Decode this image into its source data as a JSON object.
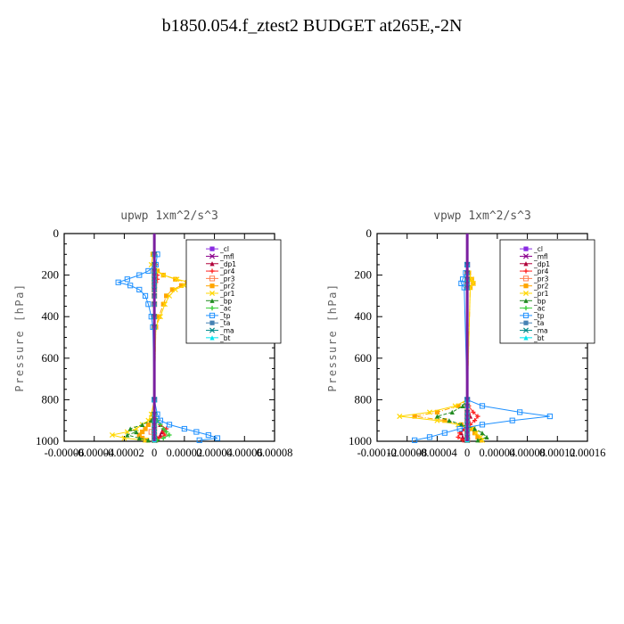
{
  "title": "b1850.054.f_ztest2  BUDGET at265E,-2N",
  "chart_data": [
    {
      "type": "line",
      "panel_title": "upwp   1xm^2/s^3",
      "ylabel": "Pressure [hPa]",
      "ylim": [
        1000,
        0
      ],
      "yticks": [
        "0",
        "200",
        "400",
        "600",
        "800",
        "1000"
      ],
      "xlim": [
        -6e-05,
        8e-05
      ],
      "xtick_labels": [
        "-0.00006",
        "-0.00004",
        "-0.00002",
        "0",
        "0.00002",
        "0.00004",
        "0.00006",
        "0.00008"
      ],
      "grid": false,
      "legend_position": "top-right",
      "pressure_levels": [
        100,
        150,
        180,
        200,
        220,
        235,
        250,
        270,
        300,
        340,
        400,
        450,
        800,
        870,
        900,
        920,
        940,
        955,
        970,
        985,
        995
      ],
      "series": [
        {
          "name": "_cl",
          "color": "#8a2be2",
          "values": [
            0,
            0,
            0,
            0,
            0,
            0,
            0,
            0,
            0,
            0,
            0,
            0,
            0,
            0,
            0,
            0,
            0,
            0,
            0,
            0,
            0
          ]
        },
        {
          "name": "_mfl",
          "color": "#8b008b",
          "values": [
            0,
            0,
            0,
            0,
            0,
            0,
            0,
            0,
            0,
            0,
            0,
            0,
            0,
            0,
            0,
            0,
            0,
            0,
            0,
            0,
            0
          ]
        },
        {
          "name": "_dp1",
          "color": "#b0003a",
          "values": [
            0,
            0,
            0,
            1e-06,
            0,
            0,
            0,
            0,
            0,
            0,
            0,
            0,
            0,
            0,
            2e-06,
            4e-06,
            6e-06,
            5e-06,
            4e-06,
            2e-06,
            1e-06
          ]
        },
        {
          "name": "_pr4",
          "color": "#ff2020",
          "values": [
            0,
            1e-06,
            1e-06,
            2e-06,
            2e-06,
            1e-06,
            0,
            0,
            0,
            0,
            0,
            0,
            0,
            0,
            2e-06,
            4e-06,
            8e-06,
            6e-06,
            7e-06,
            3e-06,
            2e-06
          ]
        },
        {
          "name": "_pr3",
          "color": "#ff7f50",
          "values": [
            0,
            0,
            0,
            0,
            0,
            0,
            0,
            0,
            0,
            0,
            0,
            0,
            0,
            0,
            0,
            0,
            0,
            -2e-06,
            0,
            0,
            0
          ]
        },
        {
          "name": "_pr2",
          "color": "#ffa500",
          "values": [
            -1e-06,
            0,
            2e-06,
            6e-06,
            1.4e-05,
            2.2e-05,
            1.8e-05,
            1.2e-05,
            8e-06,
            6e-06,
            3e-06,
            1e-06,
            0,
            -1e-06,
            -2e-06,
            -4e-06,
            -6e-06,
            -8e-06,
            -1e-05,
            -8e-06,
            -5e-06
          ]
        },
        {
          "name": "_pr1",
          "color": "#ffd700",
          "values": [
            -1e-06,
            -2e-06,
            1e-06,
            6e-06,
            1.5e-05,
            2.4e-05,
            2e-05,
            1.4e-05,
            1e-05,
            7e-06,
            4e-06,
            1e-06,
            0,
            -2e-06,
            -4e-06,
            -8e-06,
            -1.2e-05,
            -1.8e-05,
            -2.8e-05,
            -2e-05,
            -6e-06
          ]
        },
        {
          "name": "_bp",
          "color": "#228b22",
          "values": [
            0,
            0,
            0,
            0,
            0,
            0,
            0,
            0,
            0,
            0,
            0,
            0,
            0,
            0,
            -2e-06,
            -8e-06,
            -1.6e-05,
            -1.2e-05,
            -1.8e-05,
            -1e-05,
            -4e-06
          ]
        },
        {
          "name": "_ac",
          "color": "#32cd32",
          "values": [
            0,
            0,
            0,
            0,
            0,
            0,
            0,
            0,
            0,
            0,
            0,
            0,
            0,
            0,
            2e-06,
            4e-06,
            6e-06,
            8e-06,
            1e-05,
            6e-06,
            2e-06
          ]
        },
        {
          "name": "_tp",
          "color": "#1e90ff",
          "values": [
            2e-06,
            1e-06,
            -4e-06,
            -1e-05,
            -1.8e-05,
            -2.4e-05,
            -1.6e-05,
            -1e-05,
            -6e-06,
            -4e-06,
            -2e-06,
            -1e-06,
            0,
            2e-06,
            4e-06,
            1e-05,
            2e-05,
            2.8e-05,
            3.6e-05,
            4.2e-05,
            3e-05
          ]
        },
        {
          "name": "_ta",
          "color": "#4682b4",
          "values": [
            0,
            0,
            0,
            0,
            0,
            0,
            0,
            0,
            0,
            0,
            0,
            0,
            0,
            0,
            0,
            0,
            0,
            0,
            0,
            0,
            0
          ]
        },
        {
          "name": "_ma",
          "color": "#008b8b",
          "values": [
            0,
            0,
            0,
            0,
            0,
            0,
            0,
            0,
            0,
            0,
            0,
            0,
            0,
            0,
            0,
            0,
            0,
            0,
            0,
            0,
            0
          ]
        },
        {
          "name": "_bt",
          "color": "#00e5ee",
          "values": [
            0,
            0,
            0,
            0,
            0,
            0,
            0,
            0,
            0,
            0,
            0,
            0,
            0,
            0,
            0,
            0,
            0,
            0,
            0,
            0,
            0
          ]
        }
      ]
    },
    {
      "type": "line",
      "panel_title": "vpwp   1xm^2/s^3",
      "ylabel": "Pressure [hPa]",
      "ylim": [
        1000,
        0
      ],
      "yticks": [
        "0",
        "200",
        "400",
        "600",
        "800",
        "1000"
      ],
      "xlim": [
        -0.00012,
        0.00016
      ],
      "xtick_labels": [
        "-0.00012",
        "-0.00008",
        "-0.00004",
        "0",
        "0.00004",
        "0.00008",
        "0.00012",
        "0.00016"
      ],
      "grid": false,
      "legend_position": "top-right",
      "pressure_levels": [
        150,
        190,
        220,
        240,
        260,
        800,
        830,
        860,
        880,
        900,
        920,
        940,
        960,
        980,
        995
      ],
      "series": [
        {
          "name": "_cl",
          "color": "#8a2be2",
          "values": [
            0,
            0,
            0,
            0,
            0,
            0,
            0,
            0,
            0,
            0,
            0,
            0,
            0,
            0,
            0
          ]
        },
        {
          "name": "_mfl",
          "color": "#8b008b",
          "values": [
            0,
            0,
            0,
            0,
            0,
            0,
            0,
            0,
            0,
            0,
            0,
            0,
            0,
            0,
            0
          ]
        },
        {
          "name": "_dp1",
          "color": "#b0003a",
          "values": [
            0,
            0,
            0,
            0,
            0,
            0,
            0,
            2e-06,
            4e-06,
            2e-06,
            0,
            -4e-06,
            -8e-06,
            -6e-06,
            -2e-06
          ]
        },
        {
          "name": "_pr4",
          "color": "#ff2020",
          "values": [
            0,
            0,
            0,
            0,
            0,
            0,
            2e-06,
            8e-06,
            1.4e-05,
            1e-05,
            4e-06,
            -4e-06,
            -1e-05,
            -1.2e-05,
            -6e-06
          ]
        },
        {
          "name": "_pr3",
          "color": "#ff7f50",
          "values": [
            0,
            0,
            0,
            0,
            0,
            0,
            0,
            0,
            0,
            0,
            0,
            0,
            0,
            0,
            0
          ]
        },
        {
          "name": "_pr2",
          "color": "#ffa500",
          "values": [
            0,
            2e-06,
            6e-06,
            8e-06,
            4e-06,
            0,
            -1.2e-05,
            -4e-05,
            -7e-05,
            -3e-05,
            -8e-06,
            6e-06,
            1e-05,
            1.4e-05,
            1.8e-05
          ]
        },
        {
          "name": "_pr1",
          "color": "#ffd700",
          "values": [
            0,
            2e-06,
            6e-06,
            8e-06,
            4e-06,
            0,
            -1.6e-05,
            -5e-05,
            -9e-05,
            -4e-05,
            -1.2e-05,
            8e-06,
            1.2e-05,
            1.8e-05,
            2e-05
          ]
        },
        {
          "name": "_bp",
          "color": "#228b22",
          "values": [
            0,
            0,
            0,
            0,
            0,
            0,
            -6e-06,
            -2e-05,
            -4e-05,
            -2.4e-05,
            -8e-06,
            1e-05,
            2e-05,
            2.6e-05,
            1.4e-05
          ]
        },
        {
          "name": "_ac",
          "color": "#32cd32",
          "values": [
            0,
            0,
            0,
            0,
            0,
            0,
            0,
            0,
            0,
            0,
            0,
            0,
            0,
            0,
            0
          ]
        },
        {
          "name": "_tp",
          "color": "#1e90ff",
          "values": [
            0,
            -2e-06,
            -6e-06,
            -8e-06,
            -4e-06,
            0,
            2e-05,
            7e-05,
            0.00011,
            6e-05,
            2e-05,
            -1e-05,
            -3e-05,
            -5e-05,
            -7e-05
          ]
        },
        {
          "name": "_ta",
          "color": "#4682b4",
          "values": [
            0,
            0,
            0,
            0,
            0,
            0,
            0,
            0,
            0,
            0,
            0,
            0,
            0,
            0,
            0
          ]
        },
        {
          "name": "_ma",
          "color": "#008b8b",
          "values": [
            0,
            0,
            0,
            0,
            0,
            0,
            0,
            0,
            0,
            0,
            0,
            0,
            0,
            0,
            0
          ]
        },
        {
          "name": "_bt",
          "color": "#00e5ee",
          "values": [
            0,
            0,
            0,
            0,
            0,
            0,
            0,
            0,
            0,
            0,
            0,
            0,
            0,
            0,
            0
          ]
        }
      ]
    }
  ]
}
